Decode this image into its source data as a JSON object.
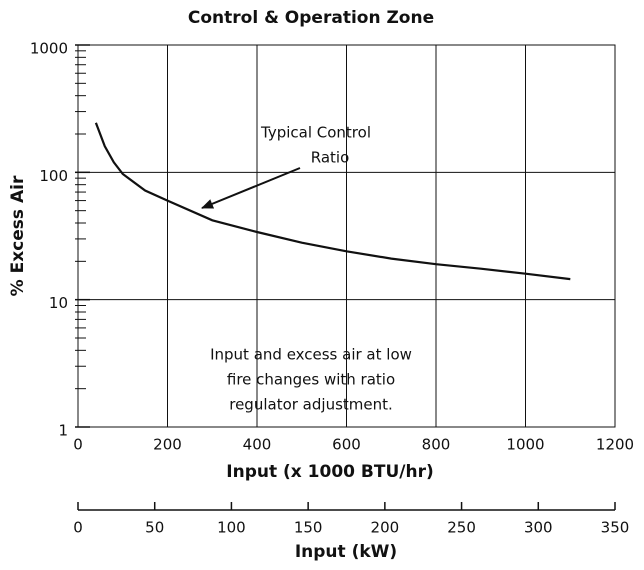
{
  "chart_data": {
    "type": "line",
    "title": "Control & Operation Zone",
    "x_label": "Input (x 1000 BTU/hr)",
    "y_label": "% Excess Air",
    "x2_label": "Input (kW)",
    "x": [
      40,
      60,
      80,
      100,
      150,
      200,
      300,
      400,
      500,
      600,
      700,
      800,
      900,
      1000,
      1100
    ],
    "series": [
      {
        "color": "#111111",
        "values": [
          245,
          160,
          120,
          97,
          72,
          60,
          42,
          34,
          28,
          24,
          21,
          19,
          17.5,
          16,
          14.5
        ]
      }
    ],
    "xlim": [
      0,
      1200
    ],
    "xticks": [
      0,
      200,
      400,
      600,
      800,
      1000,
      1200
    ],
    "ylim": [
      1,
      1000
    ],
    "yticks": [
      1,
      10,
      100,
      1000
    ],
    "yminor_ticks": [
      2,
      3,
      4,
      5,
      6,
      7,
      8,
      9,
      20,
      30,
      40,
      50,
      60,
      70,
      80,
      90,
      200,
      300,
      400,
      500,
      600,
      700,
      800,
      900
    ],
    "log_y": true,
    "grid": true,
    "x2lim": [
      0,
      350
    ],
    "x2ticks": [
      0,
      50,
      100,
      150,
      200,
      250,
      300,
      350
    ],
    "annotations": [
      {
        "lines": [
          "Typical Control",
          "Ratio"
        ]
      },
      {
        "lines": [
          "Input and excess air at low",
          "fire changes with ratio",
          "regulator adjustment."
        ]
      }
    ]
  }
}
